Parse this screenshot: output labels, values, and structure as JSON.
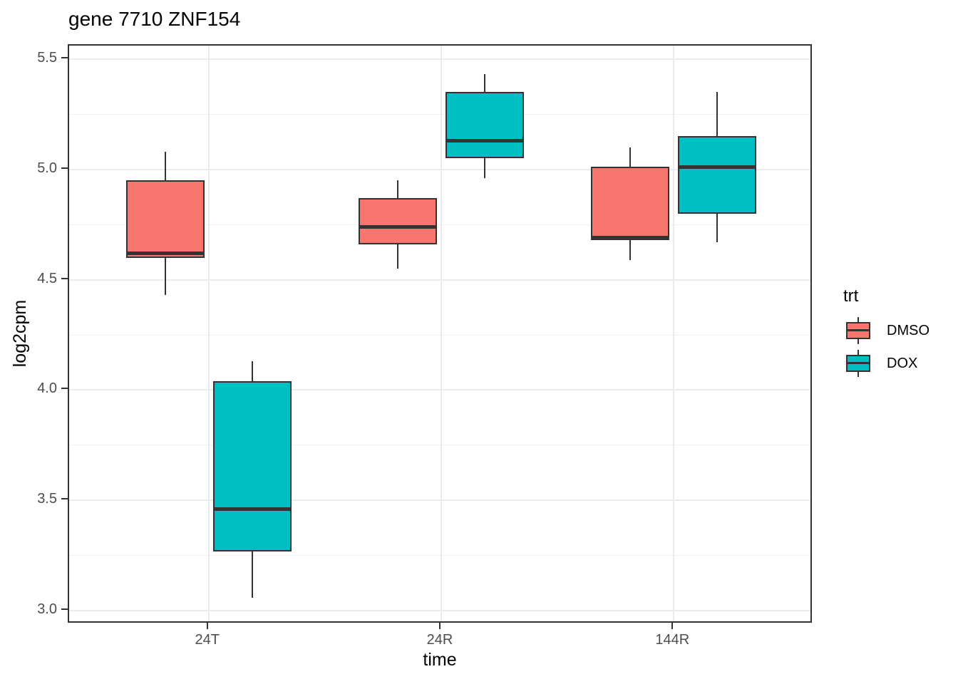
{
  "title": "gene 7710 ZNF154",
  "colors": {
    "dmso": "#F8766D",
    "dox": "#00BFC4",
    "box_outline": "#333333",
    "panel_border": "#333333",
    "grid_major": "#EBEBEB",
    "grid_minor": "#F2F2F2",
    "tick_text": "#4D4D4D",
    "title_text": "#000000"
  },
  "chart_data": {
    "type": "boxplot",
    "title": "gene 7710 ZNF154",
    "xlabel": "time",
    "ylabel": "log2cpm",
    "categories": [
      "24T",
      "24R",
      "144R"
    ],
    "yticks": [
      3.0,
      3.5,
      4.0,
      4.5,
      5.0,
      5.5
    ],
    "ylim": [
      2.94,
      5.56
    ],
    "grid": true,
    "legend_title": "trt",
    "legend_position": "right",
    "series": [
      {
        "name": "DMSO",
        "color": "#F8766D",
        "boxes": [
          {
            "category": "24T",
            "whisker_low": 4.43,
            "q1": 4.6,
            "median": 4.62,
            "q3": 4.95,
            "whisker_high": 5.08
          },
          {
            "category": "24R",
            "whisker_low": 4.55,
            "q1": 4.66,
            "median": 4.74,
            "q3": 4.87,
            "whisker_high": 4.95
          },
          {
            "category": "144R",
            "whisker_low": 4.59,
            "q1": 4.68,
            "median": 4.69,
            "q3": 5.01,
            "whisker_high": 5.1
          }
        ]
      },
      {
        "name": "DOX",
        "color": "#00BFC4",
        "boxes": [
          {
            "category": "24T",
            "whisker_low": 3.06,
            "q1": 3.27,
            "median": 3.46,
            "q3": 4.04,
            "whisker_high": 4.13
          },
          {
            "category": "24R",
            "whisker_low": 4.96,
            "q1": 5.05,
            "median": 5.13,
            "q3": 5.35,
            "whisker_high": 5.43
          },
          {
            "category": "144R",
            "whisker_low": 4.67,
            "q1": 4.8,
            "median": 5.01,
            "q3": 5.15,
            "whisker_high": 5.35
          }
        ]
      }
    ]
  }
}
